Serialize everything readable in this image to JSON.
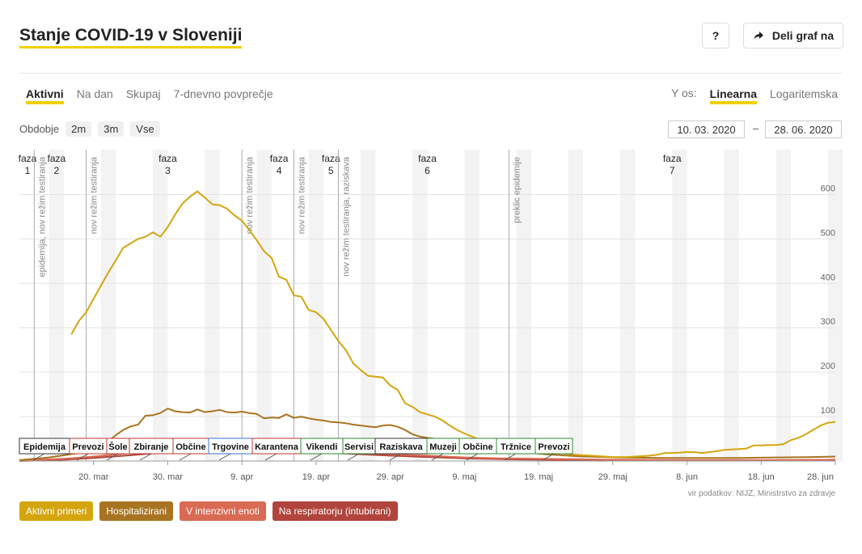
{
  "title": "Stanje COVID-19 v Sloveniji",
  "buttons": {
    "help": "?",
    "share": "Deli graf na"
  },
  "tabs": [
    {
      "label": "Aktivni",
      "active": true
    },
    {
      "label": "Na dan",
      "active": false
    },
    {
      "label": "Skupaj",
      "active": false
    },
    {
      "label": "7-dnevno povprečje",
      "active": false
    }
  ],
  "yaxis_control": {
    "label": "Y os:",
    "options": [
      {
        "label": "Linearna",
        "active": true
      },
      {
        "label": "Logaritemska",
        "active": false
      }
    ]
  },
  "period": {
    "label": "Obdobje",
    "options": [
      "2m",
      "3m",
      "Vse"
    ]
  },
  "date_range": {
    "from": "10. 03. 2020",
    "separator": "–",
    "to": "28. 06. 2020"
  },
  "source": "vir podatkov: NIJZ, Ministrstvo za zdravje",
  "chart_data": {
    "type": "line",
    "x_start": "2020-03-10",
    "x_end": "2020-06-28",
    "y_ticks": [
      100,
      200,
      300,
      400,
      500,
      600
    ],
    "ylim": [
      0,
      610
    ],
    "x_ticks": [
      {
        "date": "2020-03-20",
        "label": "20. mar"
      },
      {
        "date": "2020-03-30",
        "label": "30. mar"
      },
      {
        "date": "2020-04-09",
        "label": "9. apr"
      },
      {
        "date": "2020-04-19",
        "label": "19. apr"
      },
      {
        "date": "2020-04-29",
        "label": "29. apr"
      },
      {
        "date": "2020-05-09",
        "label": "9. maj"
      },
      {
        "date": "2020-05-19",
        "label": "19. maj"
      },
      {
        "date": "2020-05-29",
        "label": "29. maj"
      },
      {
        "date": "2020-06-08",
        "label": "8. jun"
      },
      {
        "date": "2020-06-18",
        "label": "18. jun"
      },
      {
        "date": "2020-06-28",
        "label": "28. jun"
      }
    ],
    "phases": [
      {
        "start": "2020-03-10",
        "label": [
          "faza",
          "1"
        ]
      },
      {
        "start": "2020-03-12",
        "label": [
          "faza",
          "2"
        ]
      },
      {
        "start": "2020-03-19",
        "label": [
          "faza",
          "3"
        ]
      },
      {
        "start": "2020-04-11",
        "label": [
          "faza",
          "4"
        ]
      },
      {
        "start": "2020-04-18",
        "label": [
          "faza",
          "5"
        ]
      },
      {
        "start": "2020-04-24",
        "label": [
          "faza",
          "6"
        ]
      },
      {
        "start": "2020-05-15",
        "label": [
          "faza",
          "7"
        ]
      }
    ],
    "phase_lines": [
      {
        "date": "2020-03-12",
        "label": "epidemija, nov režim testiranja"
      },
      {
        "date": "2020-03-19",
        "label": "nov režim testiranja"
      },
      {
        "date": "2020-04-09",
        "label": "nov režim testiranja"
      },
      {
        "date": "2020-04-16",
        "label": "nov režim testiranja"
      },
      {
        "date": "2020-04-22",
        "label": "nov režim testiranja, raziskava"
      },
      {
        "date": "2020-05-15",
        "label": "preklic epidemije"
      }
    ],
    "measures": [
      {
        "label": "Epidemija",
        "color": "#333333"
      },
      {
        "label": "Prevozi",
        "color": "#c0392b"
      },
      {
        "label": "Šole",
        "color": "#c0392b"
      },
      {
        "label": "Zbiranje",
        "color": "#c0392b"
      },
      {
        "label": "Občine",
        "color": "#c0392b"
      },
      {
        "label": "Trgovine",
        "color": "#3a6fd8"
      },
      {
        "label": "Karantena",
        "color": "#c0392b"
      },
      {
        "label": "Vikendi",
        "color": "#2e8b2e"
      },
      {
        "label": "Servisi",
        "color": "#2e8b2e"
      },
      {
        "label": "Raziskava",
        "color": "#333333"
      },
      {
        "label": "Muzeji",
        "color": "#2e8b2e"
      },
      {
        "label": "Občine",
        "color": "#2e8b2e"
      },
      {
        "label": "Tržnice",
        "color": "#2e8b2e"
      },
      {
        "label": "Prevozi",
        "color": "#2e8b2e"
      }
    ],
    "series": [
      {
        "name": "Aktivni primeri",
        "color": "#d4a50f",
        "points": [
          [
            "2020-03-17",
            285
          ],
          [
            "2020-03-18",
            315
          ],
          [
            "2020-03-19",
            335
          ],
          [
            "2020-03-20",
            365
          ],
          [
            "2020-03-21",
            395
          ],
          [
            "2020-03-22",
            425
          ],
          [
            "2020-03-23",
            452
          ],
          [
            "2020-03-24",
            480
          ],
          [
            "2020-03-25",
            490
          ],
          [
            "2020-03-26",
            500
          ],
          [
            "2020-03-27",
            505
          ],
          [
            "2020-03-28",
            515
          ],
          [
            "2020-03-29",
            505
          ],
          [
            "2020-03-30",
            527
          ],
          [
            "2020-03-31",
            555
          ],
          [
            "2020-04-01",
            580
          ],
          [
            "2020-04-02",
            595
          ],
          [
            "2020-04-03",
            607
          ],
          [
            "2020-04-04",
            593
          ],
          [
            "2020-04-05",
            578
          ],
          [
            "2020-04-06",
            576
          ],
          [
            "2020-04-07",
            568
          ],
          [
            "2020-04-08",
            553
          ],
          [
            "2020-04-09",
            541
          ],
          [
            "2020-04-10",
            520
          ],
          [
            "2020-04-11",
            497
          ],
          [
            "2020-04-12",
            472
          ],
          [
            "2020-04-13",
            457
          ],
          [
            "2020-04-14",
            415
          ],
          [
            "2020-04-15",
            408
          ],
          [
            "2020-04-16",
            373
          ],
          [
            "2020-04-17",
            370
          ],
          [
            "2020-04-18",
            340
          ],
          [
            "2020-04-19",
            335
          ],
          [
            "2020-04-20",
            320
          ],
          [
            "2020-04-21",
            295
          ],
          [
            "2020-04-22",
            270
          ],
          [
            "2020-04-23",
            250
          ],
          [
            "2020-04-24",
            220
          ],
          [
            "2020-04-25",
            205
          ],
          [
            "2020-04-26",
            192
          ],
          [
            "2020-04-27",
            190
          ],
          [
            "2020-04-28",
            188
          ],
          [
            "2020-04-29",
            170
          ],
          [
            "2020-04-30",
            160
          ],
          [
            "2020-05-01",
            130
          ],
          [
            "2020-05-02",
            122
          ],
          [
            "2020-05-03",
            110
          ],
          [
            "2020-05-04",
            105
          ],
          [
            "2020-05-05",
            100
          ],
          [
            "2020-05-06",
            92
          ],
          [
            "2020-05-07",
            80
          ],
          [
            "2020-05-08",
            70
          ],
          [
            "2020-05-09",
            62
          ],
          [
            "2020-05-10",
            55
          ],
          [
            "2020-05-11",
            48
          ],
          [
            "2020-05-12",
            42
          ],
          [
            "2020-05-13",
            37
          ],
          [
            "2020-05-14",
            33
          ],
          [
            "2020-05-15",
            30
          ],
          [
            "2020-05-16",
            27
          ],
          [
            "2020-05-17",
            25
          ],
          [
            "2020-05-18",
            23
          ],
          [
            "2020-05-19",
            22
          ],
          [
            "2020-05-20",
            21
          ],
          [
            "2020-05-21",
            20
          ],
          [
            "2020-05-22",
            18
          ],
          [
            "2020-05-23",
            16
          ],
          [
            "2020-05-24",
            14
          ],
          [
            "2020-05-25",
            13
          ],
          [
            "2020-05-26",
            12
          ],
          [
            "2020-05-27",
            11
          ],
          [
            "2020-05-28",
            10
          ],
          [
            "2020-05-29",
            9
          ],
          [
            "2020-05-30",
            9
          ],
          [
            "2020-05-31",
            9
          ],
          [
            "2020-06-01",
            10
          ],
          [
            "2020-06-02",
            11
          ],
          [
            "2020-06-03",
            12
          ],
          [
            "2020-06-04",
            14
          ],
          [
            "2020-06-05",
            18
          ],
          [
            "2020-06-06",
            18
          ],
          [
            "2020-06-07",
            19
          ],
          [
            "2020-06-08",
            20
          ],
          [
            "2020-06-09",
            20
          ],
          [
            "2020-06-10",
            18
          ],
          [
            "2020-06-11",
            20
          ],
          [
            "2020-06-12",
            22
          ],
          [
            "2020-06-13",
            25
          ],
          [
            "2020-06-14",
            26
          ],
          [
            "2020-06-15",
            27
          ],
          [
            "2020-06-16",
            28
          ],
          [
            "2020-06-17",
            35
          ],
          [
            "2020-06-18",
            35
          ],
          [
            "2020-06-19",
            36
          ],
          [
            "2020-06-20",
            36
          ],
          [
            "2020-06-21",
            38
          ],
          [
            "2020-06-22",
            47
          ],
          [
            "2020-06-23",
            52
          ],
          [
            "2020-06-24",
            60
          ],
          [
            "2020-06-25",
            70
          ],
          [
            "2020-06-26",
            80
          ],
          [
            "2020-06-27",
            86
          ],
          [
            "2020-06-28",
            88
          ]
        ]
      },
      {
        "name": "Hospitalizirani",
        "color": "#a87421",
        "points": [
          [
            "2020-03-10",
            2
          ],
          [
            "2020-03-14",
            8
          ],
          [
            "2020-03-18",
            18
          ],
          [
            "2020-03-20",
            30
          ],
          [
            "2020-03-22",
            45
          ],
          [
            "2020-03-23",
            58
          ],
          [
            "2020-03-24",
            70
          ],
          [
            "2020-03-25",
            78
          ],
          [
            "2020-03-26",
            82
          ],
          [
            "2020-03-27",
            102
          ],
          [
            "2020-03-28",
            103
          ],
          [
            "2020-03-29",
            108
          ],
          [
            "2020-03-30",
            118
          ],
          [
            "2020-03-31",
            112
          ],
          [
            "2020-04-01",
            110
          ],
          [
            "2020-04-02",
            109
          ],
          [
            "2020-04-03",
            116
          ],
          [
            "2020-04-04",
            110
          ],
          [
            "2020-04-05",
            112
          ],
          [
            "2020-04-06",
            115
          ],
          [
            "2020-04-07",
            110
          ],
          [
            "2020-04-08",
            109
          ],
          [
            "2020-04-09",
            111
          ],
          [
            "2020-04-10",
            108
          ],
          [
            "2020-04-11",
            106
          ],
          [
            "2020-04-12",
            96
          ],
          [
            "2020-04-13",
            98
          ],
          [
            "2020-04-14",
            97
          ],
          [
            "2020-04-15",
            105
          ],
          [
            "2020-04-16",
            97
          ],
          [
            "2020-04-17",
            100
          ],
          [
            "2020-04-18",
            96
          ],
          [
            "2020-04-19",
            93
          ],
          [
            "2020-04-20",
            91
          ],
          [
            "2020-04-21",
            88
          ],
          [
            "2020-04-22",
            87
          ],
          [
            "2020-04-23",
            85
          ],
          [
            "2020-04-24",
            82
          ],
          [
            "2020-04-25",
            80
          ],
          [
            "2020-04-26",
            78
          ],
          [
            "2020-04-27",
            76
          ],
          [
            "2020-04-28",
            80
          ],
          [
            "2020-04-29",
            81
          ],
          [
            "2020-04-30",
            77
          ],
          [
            "2020-05-01",
            70
          ],
          [
            "2020-05-02",
            60
          ],
          [
            "2020-05-03",
            55
          ],
          [
            "2020-05-04",
            52
          ],
          [
            "2020-05-05",
            50
          ],
          [
            "2020-05-08",
            40
          ],
          [
            "2020-05-11",
            32
          ],
          [
            "2020-05-14",
            25
          ],
          [
            "2020-05-17",
            20
          ],
          [
            "2020-05-20",
            15
          ],
          [
            "2020-05-25",
            10
          ],
          [
            "2020-05-30",
            8
          ],
          [
            "2020-06-05",
            7
          ],
          [
            "2020-06-10",
            7
          ],
          [
            "2020-06-15",
            7
          ],
          [
            "2020-06-20",
            8
          ],
          [
            "2020-06-25",
            9
          ],
          [
            "2020-06-28",
            10
          ]
        ]
      },
      {
        "name": "V intenzivni enoti",
        "color": "#d96b55",
        "points": [
          [
            "2020-03-10",
            1
          ],
          [
            "2020-03-16",
            5
          ],
          [
            "2020-03-20",
            10
          ],
          [
            "2020-03-25",
            18
          ],
          [
            "2020-03-30",
            25
          ],
          [
            "2020-04-04",
            32
          ],
          [
            "2020-04-09",
            30
          ],
          [
            "2020-04-14",
            27
          ],
          [
            "2020-04-19",
            24
          ],
          [
            "2020-04-24",
            20
          ],
          [
            "2020-04-29",
            15
          ],
          [
            "2020-05-04",
            12
          ],
          [
            "2020-05-09",
            8
          ],
          [
            "2020-05-14",
            6
          ],
          [
            "2020-05-19",
            5
          ],
          [
            "2020-05-29",
            3
          ],
          [
            "2020-06-08",
            2
          ],
          [
            "2020-06-18",
            2
          ],
          [
            "2020-06-28",
            3
          ]
        ]
      },
      {
        "name": "Na respiratorju (intubirani)",
        "color": "#b1443c",
        "points": [
          [
            "2020-03-10",
            0
          ],
          [
            "2020-03-16",
            3
          ],
          [
            "2020-03-20",
            7
          ],
          [
            "2020-03-25",
            13
          ],
          [
            "2020-03-30",
            20
          ],
          [
            "2020-04-04",
            26
          ],
          [
            "2020-04-09",
            25
          ],
          [
            "2020-04-14",
            22
          ],
          [
            "2020-04-19",
            20
          ],
          [
            "2020-04-24",
            16
          ],
          [
            "2020-04-29",
            12
          ],
          [
            "2020-05-04",
            9
          ],
          [
            "2020-05-09",
            6
          ],
          [
            "2020-05-14",
            4
          ],
          [
            "2020-05-19",
            3
          ],
          [
            "2020-05-29",
            2
          ],
          [
            "2020-06-08",
            1
          ],
          [
            "2020-06-18",
            1
          ],
          [
            "2020-06-28",
            2
          ]
        ]
      }
    ]
  }
}
